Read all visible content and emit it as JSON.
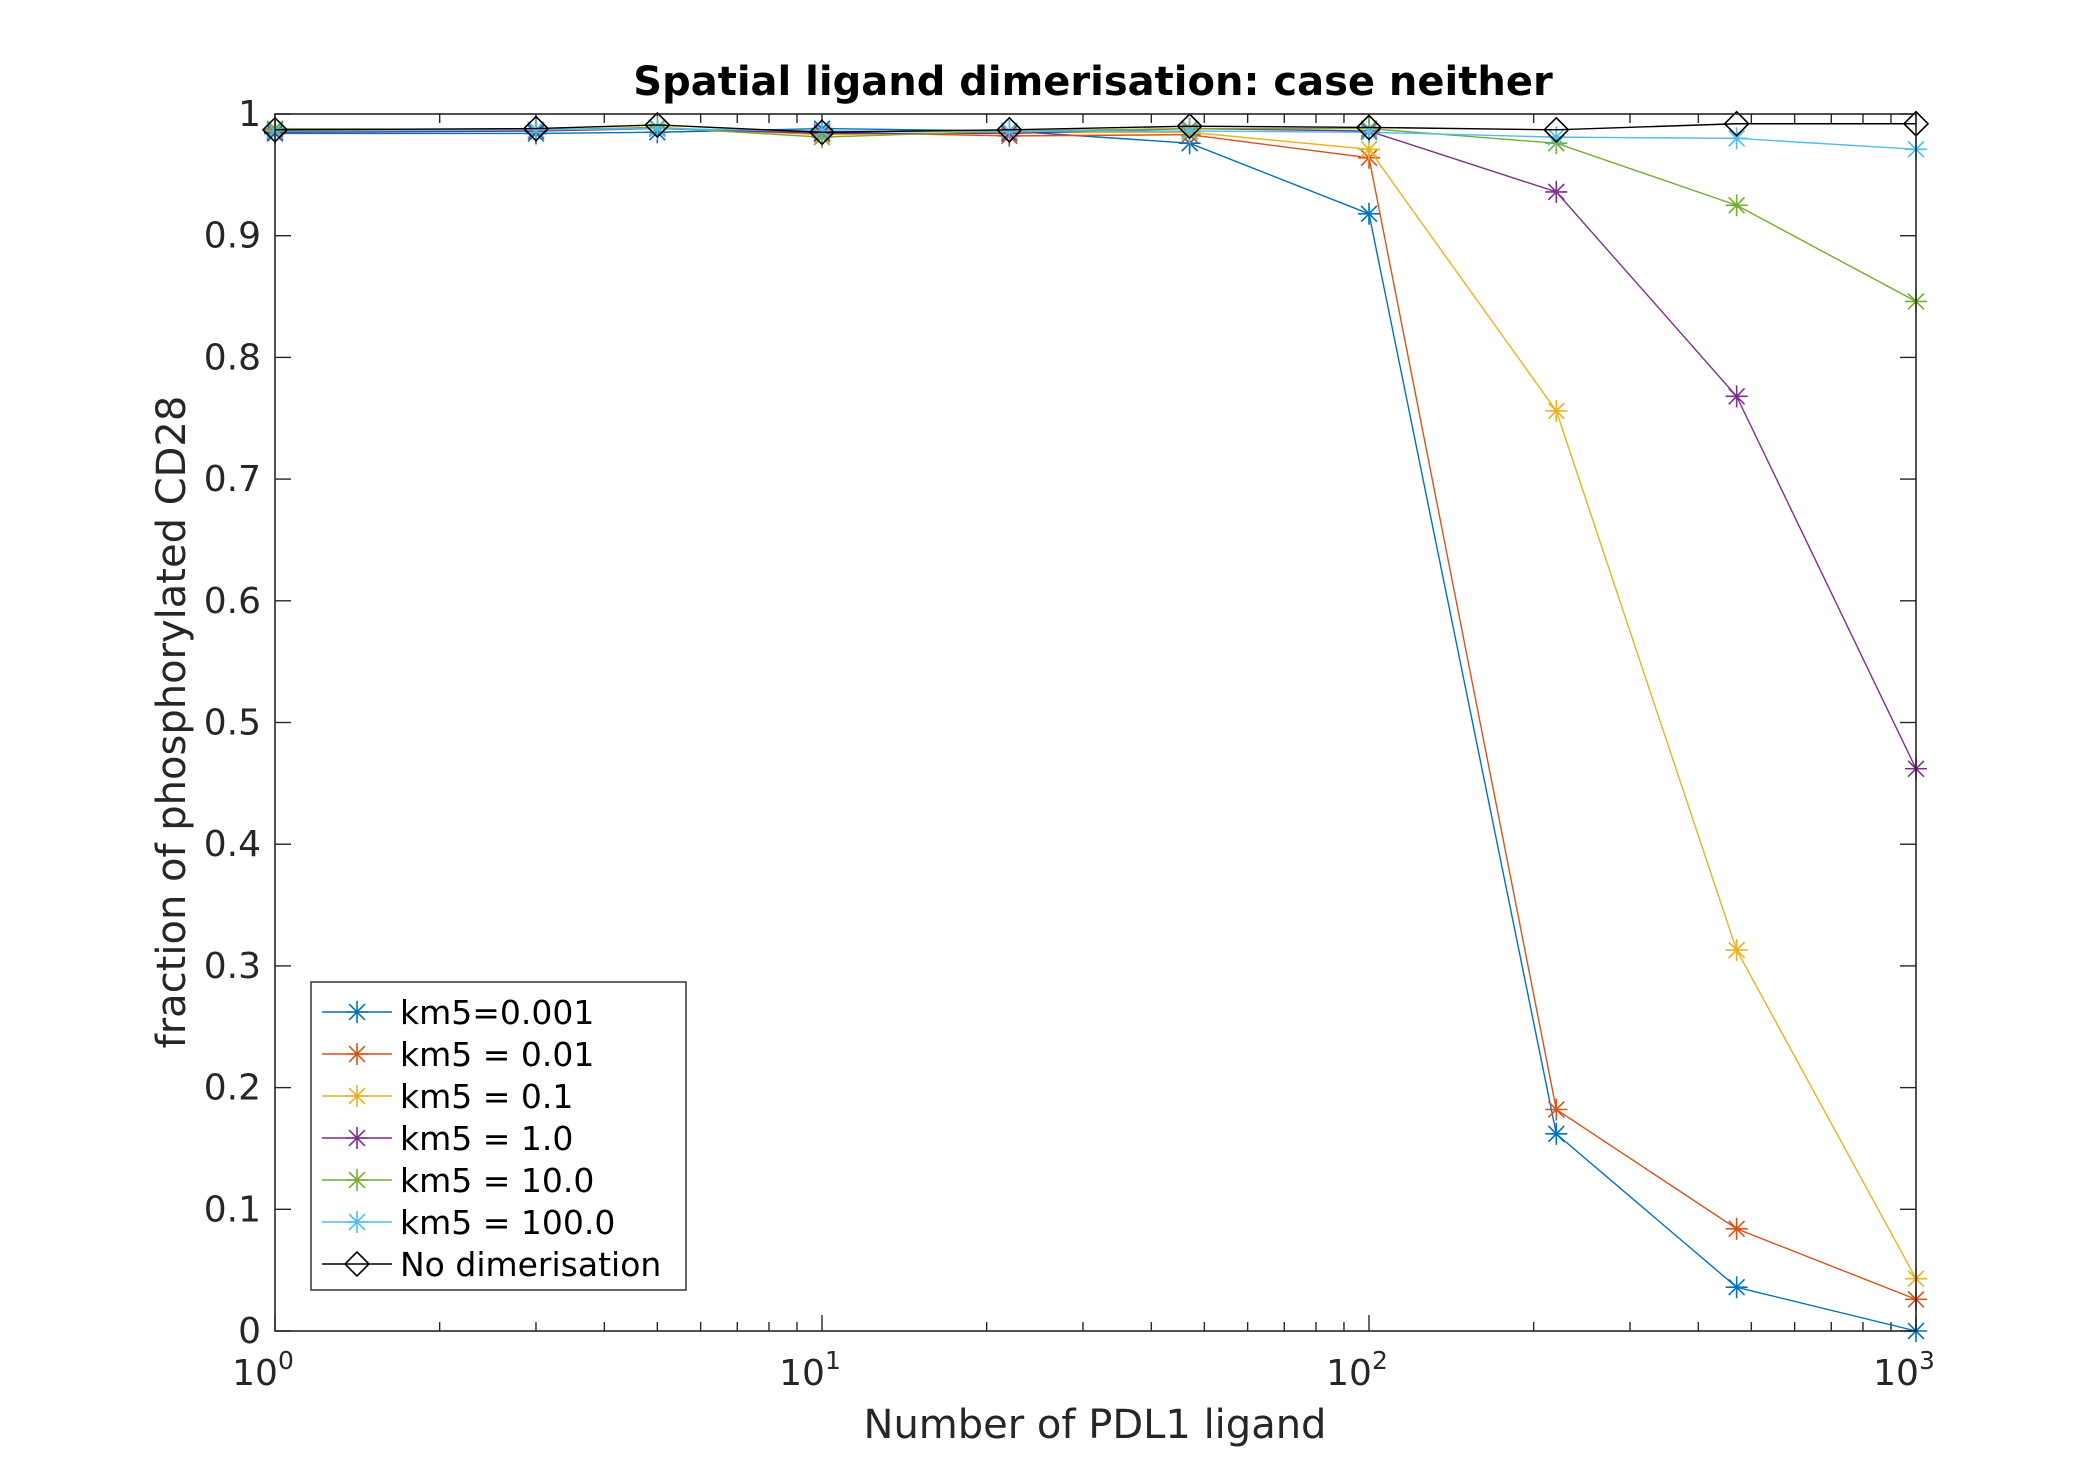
{
  "chart_data": {
    "type": "line",
    "title": "Spatial ligand dimerisation: case neither",
    "xlabel": "Number of PDL1 ligand",
    "ylabel": "fraction of phosphorylated CD28",
    "xscale": "log",
    "xlim": [
      1,
      1000
    ],
    "ylim": [
      0,
      1
    ],
    "x_ticks": [
      {
        "base": "10",
        "exp": "0"
      },
      {
        "base": "10",
        "exp": "1"
      },
      {
        "base": "10",
        "exp": "2"
      },
      {
        "base": "10",
        "exp": "3"
      }
    ],
    "y_ticks": [
      "0",
      "0.1",
      "0.2",
      "0.3",
      "0.4",
      "0.5",
      "0.6",
      "0.7",
      "0.8",
      "0.9",
      "1"
    ],
    "grid": false,
    "legend_position": "bottom-left",
    "x": [
      1,
      3,
      5,
      10,
      22,
      47,
      100,
      220,
      470,
      1000
    ],
    "series": [
      {
        "name": "km5=0.001",
        "color": "#0072BD",
        "marker": "asterisk",
        "values": [
          0.984,
          0.984,
          0.985,
          0.988,
          0.986,
          0.976,
          0.918,
          0.162,
          0.036,
          0.0
        ]
      },
      {
        "name": "km5 = 0.01",
        "color": "#D95319",
        "marker": "asterisk",
        "values": [
          0.987,
          0.987,
          0.988,
          0.985,
          0.982,
          0.983,
          0.964,
          0.182,
          0.084,
          0.026
        ]
      },
      {
        "name": "km5 = 0.1",
        "color": "#EDB120",
        "marker": "asterisk",
        "values": [
          0.986,
          0.986,
          0.989,
          0.983,
          0.985,
          0.985,
          0.971,
          0.756,
          0.313,
          0.043
        ]
      },
      {
        "name": "km5 = 1.0",
        "color": "#7E2F8E",
        "marker": "asterisk",
        "values": [
          0.985,
          0.986,
          0.988,
          0.984,
          0.984,
          0.988,
          0.986,
          0.936,
          0.768,
          0.462
        ]
      },
      {
        "name": "km5 = 10.0",
        "color": "#77AC30",
        "marker": "asterisk",
        "values": [
          0.988,
          0.987,
          0.989,
          0.981,
          0.986,
          0.988,
          0.988,
          0.976,
          0.925,
          0.846
        ]
      },
      {
        "name": "km5 = 100.0",
        "color": "#4DBEEE",
        "marker": "asterisk",
        "values": [
          0.986,
          0.987,
          0.988,
          0.986,
          0.986,
          0.986,
          0.985,
          0.981,
          0.98,
          0.971
        ]
      },
      {
        "name": "No dimerisation",
        "color": "#000000",
        "marker": "diamond",
        "values": [
          0.987,
          0.988,
          0.991,
          0.985,
          0.987,
          0.99,
          0.989,
          0.987,
          0.992,
          0.992
        ]
      }
    ]
  }
}
